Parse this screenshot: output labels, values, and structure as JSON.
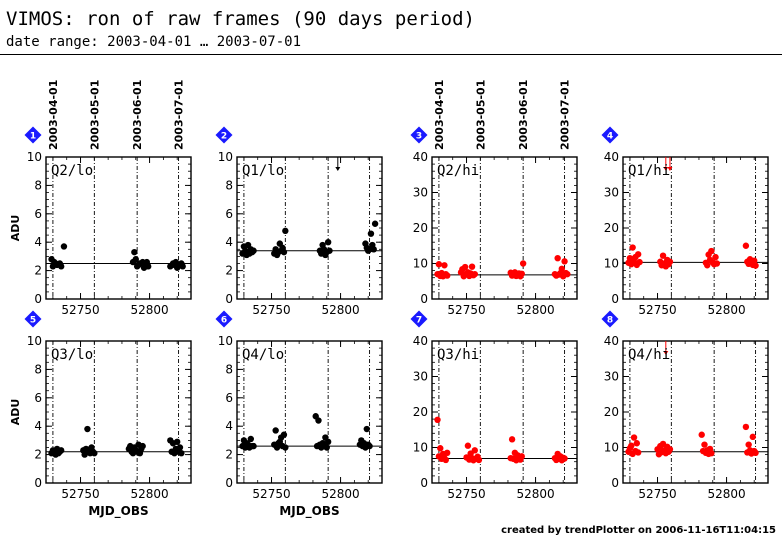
{
  "header": {
    "title": "VIMOS: ron of raw frames (90 days period)",
    "subtitle": "date range: 2003-04-01 … 2003-07-01"
  },
  "footer": "created by trendPlotter on 2006-11-16T11:04:15",
  "date_ticks": [
    "2003-04-01",
    "2003-05-01",
    "2003-06-01",
    "2003-07-01"
  ],
  "date_tick_mjd": [
    52730,
    52760,
    52791,
    52821
  ],
  "xlabel": "MJD_OBS",
  "ylabel": "ADU",
  "colors": {
    "lo": "#000000",
    "hi": "#ff0000",
    "badge": "#1a1aff"
  },
  "chart_data": [
    {
      "type": "scatter",
      "id": "1",
      "label": "Q2/lo",
      "color": "#000000",
      "xlim": [
        52725,
        52830
      ],
      "ylim": [
        0,
        10
      ],
      "yticks": [
        0,
        2,
        4,
        6,
        8,
        10
      ],
      "xticks": [
        52750,
        52800
      ],
      "ref_line": 2.5,
      "x": [
        52729,
        52730,
        52731,
        52732,
        52733,
        52735,
        52736,
        52738,
        52788,
        52789,
        52790,
        52791,
        52792,
        52793,
        52795,
        52796,
        52797,
        52798,
        52799,
        52815,
        52817,
        52818,
        52819,
        52820,
        52822,
        52823,
        52824
      ],
      "y": [
        2.8,
        2.3,
        2.6,
        2.5,
        2.4,
        2.5,
        2.3,
        3.7,
        2.6,
        3.3,
        2.8,
        2.3,
        2.4,
        2.5,
        2.6,
        2.2,
        2.4,
        2.6,
        2.3,
        2.3,
        2.5,
        2.4,
        2.6,
        2.2,
        2.4,
        2.5,
        2.3
      ],
      "outliers": []
    },
    {
      "type": "scatter",
      "id": "2",
      "label": "Q1/lo",
      "color": "#000000",
      "xlim": [
        52725,
        52830
      ],
      "ylim": [
        0,
        10
      ],
      "yticks": [
        0,
        2,
        4,
        6,
        8,
        10
      ],
      "xticks": [
        52750,
        52800
      ],
      "ref_line": 3.4,
      "x": [
        52729,
        52730,
        52731,
        52732,
        52733,
        52734,
        52735,
        52736,
        52737,
        52752,
        52753,
        52754,
        52755,
        52756,
        52757,
        52758,
        52759,
        52760,
        52785,
        52786,
        52787,
        52788,
        52789,
        52790,
        52791,
        52792,
        52818,
        52819,
        52820,
        52821,
        52822,
        52823,
        52824,
        52825
      ],
      "y": [
        3.2,
        3.7,
        3.4,
        3.1,
        3.8,
        3.2,
        3.5,
        3.3,
        3.4,
        3.2,
        3.5,
        3.1,
        3.3,
        3.9,
        3.4,
        3.6,
        3.3,
        4.8,
        3.4,
        3.2,
        3.8,
        3.5,
        3.1,
        3.3,
        4.0,
        3.4,
        3.9,
        3.6,
        3.4,
        3.5,
        4.6,
        3.8,
        3.5,
        5.3
      ],
      "outliers": [
        52798
      ]
    },
    {
      "type": "scatter",
      "id": "3",
      "label": "Q2/hi",
      "color": "#ff0000",
      "xlim": [
        52725,
        52830
      ],
      "ylim": [
        0,
        40
      ],
      "yticks": [
        0,
        10,
        20,
        30,
        40
      ],
      "xticks": [
        52750,
        52800
      ],
      "ref_line": 6.8,
      "x": [
        52729,
        52730,
        52731,
        52732,
        52733,
        52734,
        52735,
        52736,
        52746,
        52747,
        52748,
        52749,
        52750,
        52751,
        52752,
        52753,
        52754,
        52755,
        52756,
        52782,
        52783,
        52784,
        52785,
        52786,
        52787,
        52788,
        52789,
        52790,
        52791,
        52814,
        52815,
        52816,
        52817,
        52818,
        52819,
        52820,
        52821,
        52822,
        52823
      ],
      "y": [
        7.0,
        9.8,
        6.5,
        7.3,
        6.4,
        9.5,
        7.0,
        6.6,
        7.5,
        8.4,
        6.4,
        9.0,
        7.1,
        7.5,
        6.5,
        7.2,
        9.1,
        6.7,
        7.0,
        7.4,
        6.6,
        7.1,
        7.5,
        6.5,
        7.0,
        7.2,
        6.4,
        7.1,
        10.0,
        7.0,
        6.6,
        11.5,
        6.9,
        7.3,
        8.5,
        6.4,
        10.6,
        7.3,
        7.0
      ],
      "outliers": []
    },
    {
      "type": "scatter",
      "id": "4",
      "label": "Q1/hi",
      "color": "#ff0000",
      "xlim": [
        52725,
        52830
      ],
      "ylim": [
        0,
        40
      ],
      "yticks": [
        0,
        10,
        20,
        30,
        40
      ],
      "xticks": [
        52750,
        52800
      ],
      "ref_line": 10.3,
      "x": [
        52729,
        52730,
        52731,
        52732,
        52733,
        52734,
        52735,
        52736,
        52737,
        52752,
        52753,
        52754,
        52755,
        52756,
        52757,
        52758,
        52759,
        52785,
        52786,
        52787,
        52788,
        52789,
        52790,
        52791,
        52792,
        52793,
        52814,
        52815,
        52816,
        52817,
        52818,
        52819,
        52820,
        52821
      ],
      "y": [
        10.2,
        11.5,
        9.8,
        14.5,
        10.5,
        11.8,
        9.6,
        12.6,
        10.4,
        10.5,
        9.5,
        12.2,
        10.0,
        9.2,
        11.0,
        9.8,
        10.5,
        10.2,
        9.5,
        12.5,
        11.0,
        13.5,
        10.3,
        9.8,
        11.8,
        10.0,
        15.0,
        10.5,
        9.9,
        11.2,
        10.2,
        9.6,
        10.8,
        9.4
      ],
      "outliers": [
        52756,
        52759
      ]
    },
    {
      "type": "scatter",
      "id": "5",
      "label": "Q3/lo",
      "color": "#000000",
      "xlim": [
        52725,
        52830
      ],
      "ylim": [
        0,
        10
      ],
      "yticks": [
        0,
        2,
        4,
        6,
        8,
        10
      ],
      "xticks": [
        52750,
        52800
      ],
      "ref_line": 2.2,
      "x": [
        52729,
        52730,
        52731,
        52732,
        52733,
        52734,
        52735,
        52736,
        52752,
        52753,
        52754,
        52755,
        52756,
        52757,
        52758,
        52759,
        52760,
        52785,
        52786,
        52787,
        52788,
        52789,
        52790,
        52791,
        52792,
        52793,
        52794,
        52795,
        52815,
        52816,
        52817,
        52818,
        52819,
        52820,
        52821,
        52822,
        52823
      ],
      "y": [
        2.1,
        2.3,
        2.2,
        2.0,
        2.4,
        2.1,
        2.2,
        2.3,
        2.3,
        2.0,
        2.4,
        3.8,
        2.2,
        2.1,
        2.5,
        2.2,
        2.1,
        2.4,
        2.6,
        2.2,
        2.1,
        2.5,
        2.3,
        2.2,
        2.7,
        2.1,
        2.4,
        2.6,
        3.0,
        2.2,
        2.8,
        2.1,
        2.4,
        2.9,
        2.2,
        2.5,
        2.1
      ],
      "outliers": []
    },
    {
      "type": "scatter",
      "id": "6",
      "label": "Q4/lo",
      "color": "#000000",
      "xlim": [
        52725,
        52830
      ],
      "ylim": [
        0,
        10
      ],
      "yticks": [
        0,
        2,
        4,
        6,
        8,
        10
      ],
      "xticks": [
        52750,
        52800
      ],
      "ref_line": 2.6,
      "x": [
        52729,
        52730,
        52731,
        52732,
        52733,
        52734,
        52735,
        52736,
        52737,
        52752,
        52753,
        52754,
        52755,
        52756,
        52757,
        52758,
        52759,
        52760,
        52782,
        52783,
        52784,
        52785,
        52786,
        52787,
        52788,
        52789,
        52790,
        52791,
        52814,
        52815,
        52816,
        52817,
        52818,
        52819,
        52820,
        52821
      ],
      "y": [
        2.6,
        3.0,
        2.5,
        2.8,
        2.7,
        2.5,
        3.1,
        2.6,
        2.6,
        2.7,
        3.7,
        2.5,
        2.8,
        2.9,
        3.2,
        2.6,
        3.4,
        2.5,
        4.7,
        2.6,
        4.4,
        2.7,
        2.5,
        2.8,
        2.6,
        3.2,
        2.5,
        2.9,
        2.7,
        3.0,
        2.6,
        2.8,
        2.5,
        3.8,
        2.7,
        2.6
      ],
      "outliers": []
    },
    {
      "type": "scatter",
      "id": "7",
      "label": "Q3/hi",
      "color": "#ff0000",
      "xlim": [
        52725,
        52830
      ],
      "ylim": [
        0,
        40
      ],
      "yticks": [
        0,
        10,
        20,
        30,
        40
      ],
      "xticks": [
        52750,
        52800
      ],
      "ref_line": 6.9,
      "x": [
        52729,
        52730,
        52731,
        52732,
        52733,
        52734,
        52735,
        52736,
        52750,
        52751,
        52752,
        52753,
        52754,
        52755,
        52756,
        52757,
        52758,
        52759,
        52782,
        52783,
        52784,
        52785,
        52786,
        52787,
        52788,
        52789,
        52790,
        52814,
        52815,
        52816,
        52817,
        52818,
        52819,
        52820,
        52821
      ],
      "y": [
        17.8,
        7.5,
        9.8,
        6.8,
        8.2,
        7.0,
        6.5,
        8.5,
        7.2,
        10.5,
        6.6,
        8.3,
        7.0,
        6.4,
        9.2,
        6.8,
        7.4,
        6.5,
        7.0,
        12.3,
        6.8,
        8.5,
        6.4,
        7.8,
        7.2,
        6.6,
        7.5,
        7.0,
        6.5,
        8.2,
        6.8,
        7.5,
        6.4,
        7.1,
        6.9
      ],
      "outliers": []
    },
    {
      "type": "scatter",
      "id": "8",
      "label": "Q4/hi",
      "color": "#ff0000",
      "xlim": [
        52725,
        52830
      ],
      "ylim": [
        0,
        40
      ],
      "yticks": [
        0,
        10,
        20,
        30,
        40
      ],
      "xticks": [
        52750,
        52800
      ],
      "ref_line": 8.8,
      "x": [
        52729,
        52730,
        52731,
        52732,
        52733,
        52734,
        52735,
        52736,
        52750,
        52751,
        52752,
        52753,
        52754,
        52755,
        52756,
        52757,
        52758,
        52759,
        52782,
        52783,
        52784,
        52785,
        52786,
        52787,
        52788,
        52789,
        52814,
        52815,
        52816,
        52817,
        52818,
        52819,
        52820,
        52821
      ],
      "y": [
        8.8,
        9.8,
        10.5,
        8.2,
        12.8,
        9.0,
        11.2,
        8.6,
        9.5,
        8.1,
        10.4,
        8.7,
        11.0,
        9.2,
        8.4,
        10.2,
        8.8,
        9.5,
        13.6,
        9.0,
        10.8,
        8.5,
        9.2,
        8.2,
        9.6,
        8.4,
        15.8,
        8.6,
        10.8,
        9.2,
        8.3,
        13.0,
        9.0,
        8.5
      ],
      "outliers": [
        52756
      ]
    }
  ]
}
